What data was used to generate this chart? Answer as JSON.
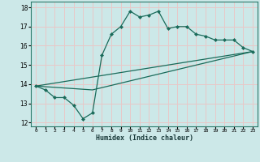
{
  "xlabel": "Humidex (Indice chaleur)",
  "ylabel": "",
  "bg_color": "#cce8e8",
  "plot_bg_color": "#dde8e8",
  "grid_color": "#e8c8c8",
  "line_color": "#1a6b5a",
  "xlim": [
    -0.5,
    23.5
  ],
  "ylim": [
    11.8,
    18.3
  ],
  "xticks": [
    0,
    1,
    2,
    3,
    4,
    5,
    6,
    7,
    8,
    9,
    10,
    11,
    12,
    13,
    14,
    15,
    16,
    17,
    18,
    19,
    20,
    21,
    22,
    23
  ],
  "yticks": [
    12,
    13,
    14,
    15,
    16,
    17,
    18
  ],
  "line1_x": [
    0,
    1,
    2,
    3,
    4,
    5,
    6,
    7,
    8,
    9,
    10,
    11,
    12,
    13,
    14,
    15,
    16,
    17,
    18,
    19,
    20,
    21,
    22,
    23
  ],
  "line1_y": [
    13.9,
    13.7,
    13.3,
    13.3,
    12.9,
    12.2,
    12.5,
    15.5,
    16.6,
    17.0,
    17.8,
    17.5,
    17.6,
    17.8,
    16.9,
    17.0,
    17.0,
    16.6,
    16.5,
    16.3,
    16.3,
    16.3,
    15.9,
    15.7
  ],
  "line2_x": [
    0,
    23
  ],
  "line2_y": [
    13.9,
    15.7
  ],
  "line3_x": [
    0,
    6,
    23
  ],
  "line3_y": [
    13.9,
    13.7,
    15.7
  ]
}
